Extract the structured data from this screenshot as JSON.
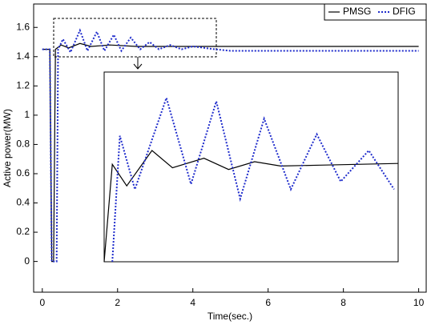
{
  "chart_data": [
    {
      "type": "line",
      "xlabel": "Time(sec.)",
      "ylabel": "Active power(MW)",
      "xlim": [
        -0.23,
        10.2
      ],
      "ylim": [
        -0.21,
        1.76
      ],
      "xticks": [
        0,
        2,
        4,
        6,
        8,
        10
      ],
      "yticks": [
        0,
        0.2,
        0.4,
        0.6,
        0.8,
        1,
        1.2,
        1.4,
        1.6
      ],
      "legend": "upper right",
      "series": [
        {
          "name": "PMSG",
          "color": "#000000",
          "style": "solid",
          "x": [
            0,
            0.2,
            0.25,
            0.3,
            0.35,
            0.5,
            0.7,
            1.0,
            1.3,
            1.8,
            2.5,
            10
          ],
          "values": [
            1.45,
            1.45,
            0,
            0,
            1.45,
            1.48,
            1.46,
            1.49,
            1.47,
            1.48,
            1.47,
            1.47
          ]
        },
        {
          "name": "DFIG",
          "color": "#1f2ccc",
          "style": "dotted",
          "x": [
            0,
            0.2,
            0.25,
            0.38,
            0.42,
            0.55,
            0.75,
            1.0,
            1.2,
            1.45,
            1.65,
            1.9,
            2.1,
            2.35,
            2.6,
            2.85,
            3.1,
            3.4,
            3.7,
            4.0,
            4.6,
            5,
            10
          ],
          "values": [
            1.45,
            1.45,
            0,
            0,
            1.45,
            1.52,
            1.43,
            1.58,
            1.44,
            1.57,
            1.44,
            1.55,
            1.44,
            1.53,
            1.45,
            1.5,
            1.45,
            1.48,
            1.45,
            1.47,
            1.45,
            1.44,
            1.44
          ]
        }
      ]
    },
    {
      "type": "line",
      "xlim": [
        0.3,
        4.6
      ],
      "ylim": [
        1.4,
        1.62
      ],
      "series": [
        {
          "color": "#000000",
          "style": "solid",
          "x": [
            0.3,
            0.42,
            0.63,
            1.0,
            1.3,
            1.76,
            2.12,
            2.5,
            2.88,
            3.46,
            4.6
          ],
          "values": [
            1.4,
            1.513,
            1.488,
            1.529,
            1.509,
            1.52,
            1.507,
            1.516,
            1.511,
            1.512,
            1.514
          ]
        },
        {
          "color": "#1f2ccc",
          "style": "dotted",
          "x": [
            0.42,
            0.53,
            0.75,
            1.21,
            1.57,
            1.94,
            2.29,
            2.64,
            3.03,
            3.41,
            3.76,
            4.17,
            4.54
          ],
          "values": [
            1.4,
            1.546,
            1.484,
            1.59,
            1.49,
            1.586,
            1.473,
            1.566,
            1.484,
            1.548,
            1.493,
            1.529,
            1.484
          ]
        }
      ]
    }
  ]
}
